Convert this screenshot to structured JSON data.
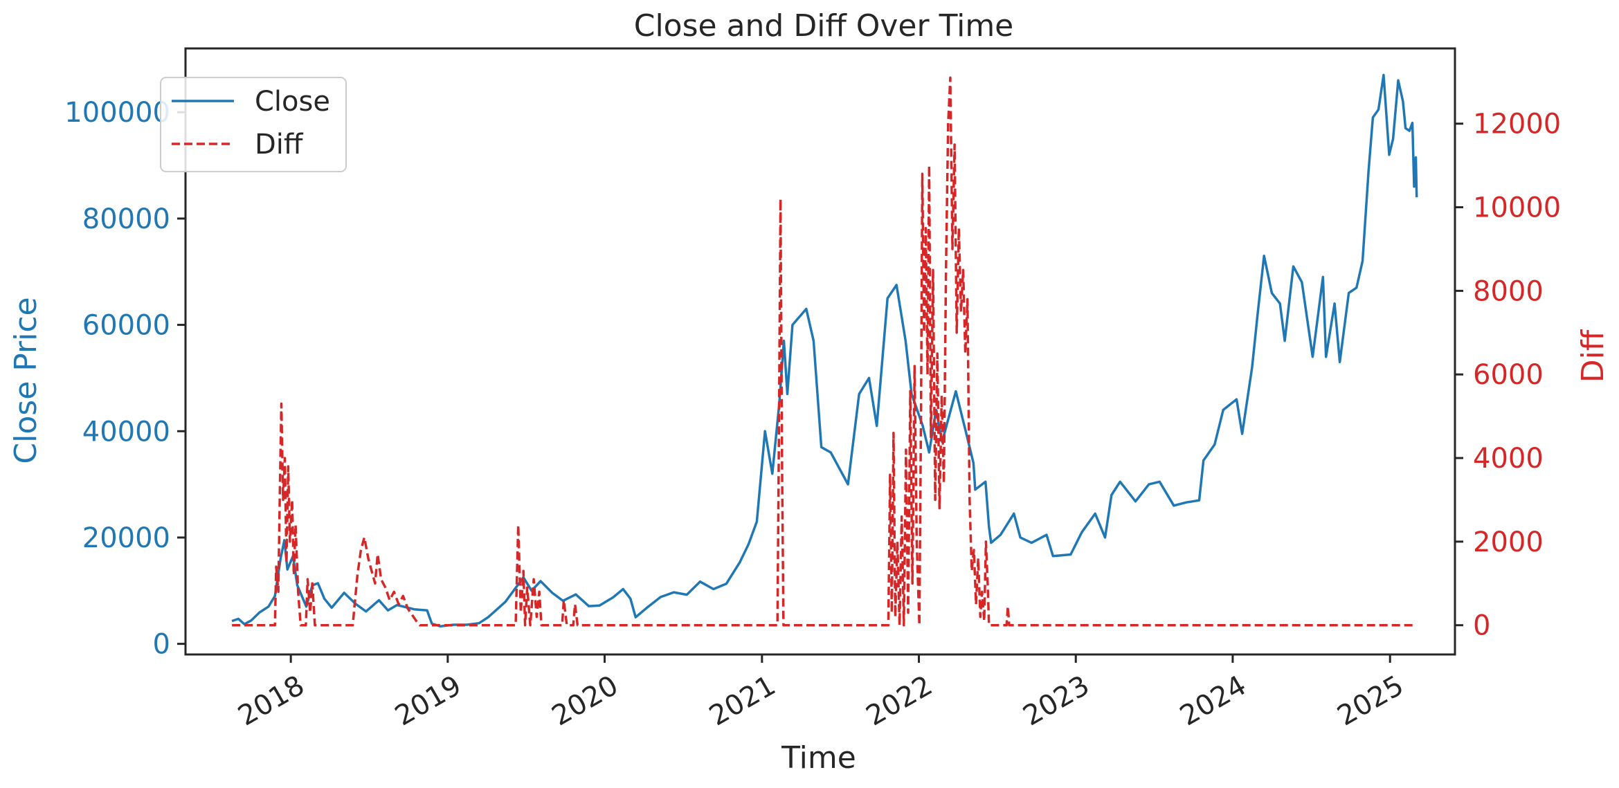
{
  "chart_data": {
    "type": "line",
    "title": "Close and Diff Over Time",
    "xlabel": "Time",
    "x_ticks": [
      "2018",
      "2019",
      "2020",
      "2021",
      "2022",
      "2023",
      "2024",
      "2025"
    ],
    "xlim": [
      "2017-05-01",
      "2025-06-01"
    ],
    "y_left": {
      "label": "Close Price",
      "color": "#1f77b4",
      "ticks": [
        0,
        20000,
        40000,
        60000,
        80000,
        100000
      ],
      "ylim": [
        -2000,
        112000
      ]
    },
    "y_right": {
      "label": "Diff",
      "color": "#d62728",
      "ticks": [
        0,
        2000,
        4000,
        6000,
        8000,
        10000,
        12000
      ],
      "ylim": [
        -700,
        13800
      ]
    },
    "legend": {
      "placement": "upper-left",
      "entries": [
        {
          "label": "Close",
          "color": "#1f77b4",
          "style": "solid"
        },
        {
          "label": "Diff",
          "color": "#d62728",
          "style": "dashed"
        }
      ]
    },
    "grid": false,
    "series": [
      {
        "name": "Close",
        "axis": "left",
        "color": "#1f77b4",
        "style": "solid",
        "points": [
          [
            "2017-08-17",
            4300
          ],
          [
            "2017-09-01",
            4700
          ],
          [
            "2017-09-15",
            3700
          ],
          [
            "2017-10-01",
            4400
          ],
          [
            "2017-10-20",
            5900
          ],
          [
            "2017-11-10",
            7000
          ],
          [
            "2017-11-25",
            9000
          ],
          [
            "2017-12-08",
            16000
          ],
          [
            "2017-12-17",
            19500
          ],
          [
            "2017-12-24",
            14000
          ],
          [
            "2018-01-06",
            16500
          ],
          [
            "2018-01-16",
            11000
          ],
          [
            "2018-02-06",
            7000
          ],
          [
            "2018-02-20",
            11000
          ],
          [
            "2018-03-05",
            11400
          ],
          [
            "2018-03-20",
            8500
          ],
          [
            "2018-04-06",
            6800
          ],
          [
            "2018-05-05",
            9600
          ],
          [
            "2018-06-01",
            7500
          ],
          [
            "2018-06-25",
            6100
          ],
          [
            "2018-07-25",
            8200
          ],
          [
            "2018-08-15",
            6300
          ],
          [
            "2018-09-05",
            7300
          ],
          [
            "2018-10-15",
            6500
          ],
          [
            "2018-11-14",
            6300
          ],
          [
            "2018-11-25",
            3800
          ],
          [
            "2018-12-15",
            3300
          ],
          [
            "2019-01-15",
            3600
          ],
          [
            "2019-02-15",
            3600
          ],
          [
            "2019-03-15",
            3900
          ],
          [
            "2019-04-05",
            5000
          ],
          [
            "2019-05-15",
            7900
          ],
          [
            "2019-06-26",
            12500
          ],
          [
            "2019-07-15",
            10000
          ],
          [
            "2019-08-05",
            11800
          ],
          [
            "2019-09-01",
            9600
          ],
          [
            "2019-09-26",
            8100
          ],
          [
            "2019-10-26",
            9300
          ],
          [
            "2019-11-25",
            7100
          ],
          [
            "2019-12-20",
            7200
          ],
          [
            "2020-01-20",
            8700
          ],
          [
            "2020-02-13",
            10300
          ],
          [
            "2020-03-01",
            8500
          ],
          [
            "2020-03-13",
            5000
          ],
          [
            "2020-04-10",
            6900
          ],
          [
            "2020-05-10",
            8800
          ],
          [
            "2020-06-10",
            9700
          ],
          [
            "2020-07-10",
            9250
          ],
          [
            "2020-08-10",
            11700
          ],
          [
            "2020-09-10",
            10300
          ],
          [
            "2020-10-10",
            11300
          ],
          [
            "2020-11-10",
            15300
          ],
          [
            "2020-12-01",
            18800
          ],
          [
            "2020-12-20",
            23000
          ],
          [
            "2021-01-08",
            40000
          ],
          [
            "2021-01-25",
            32000
          ],
          [
            "2021-02-10",
            45000
          ],
          [
            "2021-02-21",
            57000
          ],
          [
            "2021-03-01",
            47000
          ],
          [
            "2021-03-13",
            60000
          ],
          [
            "2021-04-14",
            63000
          ],
          [
            "2021-05-01",
            57000
          ],
          [
            "2021-05-19",
            37000
          ],
          [
            "2021-06-10",
            36000
          ],
          [
            "2021-07-20",
            30000
          ],
          [
            "2021-08-15",
            47000
          ],
          [
            "2021-09-07",
            50000
          ],
          [
            "2021-09-25",
            41000
          ],
          [
            "2021-10-20",
            65000
          ],
          [
            "2021-11-10",
            67500
          ],
          [
            "2021-12-01",
            57000
          ],
          [
            "2021-12-15",
            47000
          ],
          [
            "2022-01-10",
            41000
          ],
          [
            "2022-01-25",
            36000
          ],
          [
            "2022-02-10",
            44000
          ],
          [
            "2022-02-24",
            38000
          ],
          [
            "2022-03-28",
            47500
          ],
          [
            "2022-04-20",
            40000
          ],
          [
            "2022-05-08",
            34000
          ],
          [
            "2022-05-12",
            29000
          ],
          [
            "2022-06-05",
            30500
          ],
          [
            "2022-06-13",
            22000
          ],
          [
            "2022-06-18",
            19000
          ],
          [
            "2022-07-10",
            20500
          ],
          [
            "2022-08-10",
            24500
          ],
          [
            "2022-08-25",
            20000
          ],
          [
            "2022-09-20",
            19000
          ],
          [
            "2022-10-25",
            20500
          ],
          [
            "2022-11-09",
            16500
          ],
          [
            "2022-12-20",
            16800
          ],
          [
            "2023-01-15",
            21000
          ],
          [
            "2023-02-15",
            24500
          ],
          [
            "2023-03-10",
            20000
          ],
          [
            "2023-03-25",
            28000
          ],
          [
            "2023-04-14",
            30500
          ],
          [
            "2023-05-20",
            26800
          ],
          [
            "2023-06-20",
            30000
          ],
          [
            "2023-07-15",
            30500
          ],
          [
            "2023-08-17",
            26000
          ],
          [
            "2023-09-15",
            26600
          ],
          [
            "2023-10-15",
            27000
          ],
          [
            "2023-10-25",
            34500
          ],
          [
            "2023-11-20",
            37500
          ],
          [
            "2023-12-10",
            44000
          ],
          [
            "2024-01-10",
            46000
          ],
          [
            "2024-01-23",
            39500
          ],
          [
            "2024-02-15",
            52000
          ],
          [
            "2024-02-28",
            62000
          ],
          [
            "2024-03-14",
            73000
          ],
          [
            "2024-04-01",
            66000
          ],
          [
            "2024-04-20",
            64000
          ],
          [
            "2024-05-01",
            57000
          ],
          [
            "2024-05-21",
            71000
          ],
          [
            "2024-06-10",
            68000
          ],
          [
            "2024-07-05",
            54000
          ],
          [
            "2024-07-29",
            69000
          ],
          [
            "2024-08-05",
            54000
          ],
          [
            "2024-08-25",
            64000
          ],
          [
            "2024-09-06",
            53000
          ],
          [
            "2024-09-27",
            66000
          ],
          [
            "2024-10-15",
            67000
          ],
          [
            "2024-10-29",
            72000
          ],
          [
            "2024-11-12",
            89000
          ],
          [
            "2024-11-22",
            99000
          ],
          [
            "2024-12-05",
            100500
          ],
          [
            "2024-12-17",
            107000
          ],
          [
            "2024-12-30",
            92000
          ],
          [
            "2025-01-08",
            95000
          ],
          [
            "2025-01-20",
            106000
          ],
          [
            "2025-01-31",
            102000
          ],
          [
            "2025-02-06",
            97000
          ],
          [
            "2025-02-15",
            96500
          ],
          [
            "2025-02-22",
            98000
          ],
          [
            "2025-02-26",
            86000
          ],
          [
            "2025-03-02",
            91500
          ],
          [
            "2025-03-04",
            84000
          ]
        ]
      },
      {
        "name": "Diff",
        "axis": "right",
        "color": "#d62728",
        "style": "dashed",
        "points": [
          [
            "2017-08-17",
            0
          ],
          [
            "2017-11-25",
            0
          ],
          [
            "2017-11-28",
            1400
          ],
          [
            "2017-12-03",
            800
          ],
          [
            "2017-12-07",
            3500
          ],
          [
            "2017-12-10",
            5300
          ],
          [
            "2017-12-14",
            3000
          ],
          [
            "2017-12-18",
            4000
          ],
          [
            "2017-12-22",
            1500
          ],
          [
            "2017-12-26",
            3800
          ],
          [
            "2017-12-30",
            2000
          ],
          [
            "2018-01-04",
            3000
          ],
          [
            "2018-01-08",
            1200
          ],
          [
            "2018-01-12",
            2400
          ],
          [
            "2018-01-18",
            800
          ],
          [
            "2018-01-24",
            0
          ],
          [
            "2018-02-05",
            0
          ],
          [
            "2018-02-09",
            1100
          ],
          [
            "2018-02-15",
            300
          ],
          [
            "2018-02-20",
            1000
          ],
          [
            "2018-02-26",
            0
          ],
          [
            "2018-03-05",
            0
          ],
          [
            "2018-05-15",
            0
          ],
          [
            "2018-05-25",
            0
          ],
          [
            "2018-06-05",
            1200
          ],
          [
            "2018-06-13",
            1800
          ],
          [
            "2018-06-21",
            2100
          ],
          [
            "2018-06-30",
            1600
          ],
          [
            "2018-07-08",
            1300
          ],
          [
            "2018-07-16",
            1000
          ],
          [
            "2018-07-22",
            1700
          ],
          [
            "2018-07-30",
            1100
          ],
          [
            "2018-08-09",
            900
          ],
          [
            "2018-08-19",
            600
          ],
          [
            "2018-08-29",
            800
          ],
          [
            "2018-09-09",
            500
          ],
          [
            "2018-09-19",
            700
          ],
          [
            "2018-09-30",
            400
          ],
          [
            "2018-10-20",
            100
          ],
          [
            "2018-10-28",
            0
          ],
          [
            "2019-06-08",
            0
          ],
          [
            "2019-06-14",
            2400
          ],
          [
            "2019-06-20",
            300
          ],
          [
            "2019-06-26",
            1300
          ],
          [
            "2019-06-30",
            0
          ],
          [
            "2019-07-05",
            900
          ],
          [
            "2019-07-12",
            0
          ],
          [
            "2019-07-20",
            1100
          ],
          [
            "2019-07-27",
            200
          ],
          [
            "2019-08-02",
            800
          ],
          [
            "2019-08-07",
            0
          ],
          [
            "2019-09-24",
            0
          ],
          [
            "2019-09-28",
            600
          ],
          [
            "2019-10-05",
            0
          ],
          [
            "2019-10-20",
            0
          ],
          [
            "2019-10-24",
            500
          ],
          [
            "2019-10-30",
            0
          ],
          [
            "2021-02-06",
            0
          ],
          [
            "2021-02-09",
            4000
          ],
          [
            "2021-02-13",
            10200
          ],
          [
            "2021-02-17",
            3500
          ],
          [
            "2021-02-20",
            0
          ],
          [
            "2021-10-22",
            0
          ],
          [
            "2021-10-26",
            3600
          ],
          [
            "2021-10-30",
            300
          ],
          [
            "2021-11-03",
            4600
          ],
          [
            "2021-11-07",
            200
          ],
          [
            "2021-11-12",
            2000
          ],
          [
            "2021-11-17",
            0
          ],
          [
            "2021-11-22",
            2600
          ],
          [
            "2021-11-27",
            0
          ],
          [
            "2021-12-02",
            4200
          ],
          [
            "2021-12-07",
            300
          ],
          [
            "2021-12-12",
            5600
          ],
          [
            "2021-12-17",
            1000
          ],
          [
            "2021-12-22",
            6200
          ],
          [
            "2021-12-27",
            2000
          ],
          [
            "2022-01-02",
            0
          ],
          [
            "2022-01-06",
            5000
          ],
          [
            "2022-01-09",
            10800
          ],
          [
            "2022-01-13",
            7000
          ],
          [
            "2022-01-17",
            9500
          ],
          [
            "2022-01-21",
            6000
          ],
          [
            "2022-01-25",
            11000
          ],
          [
            "2022-01-29",
            4500
          ],
          [
            "2022-02-03",
            8500
          ],
          [
            "2022-02-08",
            3000
          ],
          [
            "2022-02-13",
            6500
          ],
          [
            "2022-02-18",
            2800
          ],
          [
            "2022-02-23",
            5500
          ],
          [
            "2022-02-28",
            3400
          ],
          [
            "2022-03-05",
            8500
          ],
          [
            "2022-03-10",
            12000
          ],
          [
            "2022-03-15",
            13100
          ],
          [
            "2022-03-20",
            9000
          ],
          [
            "2022-03-25",
            11500
          ],
          [
            "2022-03-30",
            7000
          ],
          [
            "2022-04-04",
            9500
          ],
          [
            "2022-04-09",
            7500
          ],
          [
            "2022-04-14",
            8500
          ],
          [
            "2022-04-19",
            6500
          ],
          [
            "2022-04-24",
            7800
          ],
          [
            "2022-04-29",
            3000
          ],
          [
            "2022-05-04",
            1300
          ],
          [
            "2022-05-09",
            1800
          ],
          [
            "2022-05-14",
            500
          ],
          [
            "2022-05-19",
            1600
          ],
          [
            "2022-05-24",
            200
          ],
          [
            "2022-05-28",
            800
          ],
          [
            "2022-06-02",
            100
          ],
          [
            "2022-06-06",
            2000
          ],
          [
            "2022-06-10",
            1000
          ],
          [
            "2022-06-13",
            0
          ],
          [
            "2022-07-24",
            0
          ],
          [
            "2022-07-27",
            450
          ],
          [
            "2022-07-30",
            0
          ],
          [
            "2025-03-04",
            0
          ]
        ]
      }
    ]
  }
}
